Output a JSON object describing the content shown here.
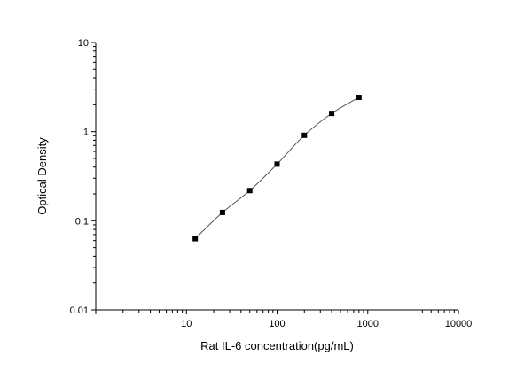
{
  "chart_data": {
    "type": "scatter",
    "title": "",
    "xlabel": "Rat IL-6 concentration(pg/mL)",
    "ylabel": "Optical Density",
    "x_scale": "log",
    "y_scale": "log",
    "xlim": [
      1,
      10000
    ],
    "ylim": [
      0.01,
      10
    ],
    "x_ticks": [
      10,
      100,
      1000,
      10000
    ],
    "x_tick_labels": [
      "10",
      "100",
      "1000",
      "10000"
    ],
    "y_ticks": [
      0.01,
      0.1,
      1,
      10
    ],
    "y_tick_labels": [
      "0.01",
      "0.1",
      "1",
      "10"
    ],
    "grid": false,
    "series": [
      {
        "x": [
          12.5,
          25,
          50,
          100,
          200,
          400,
          800
        ],
        "y": [
          0.063,
          0.124,
          0.218,
          0.432,
          0.91,
          1.6,
          2.42
        ],
        "marker": "square",
        "fit_curve": true
      }
    ],
    "colors": {
      "marker": "#000000",
      "curve": "#555555",
      "axis": "#000000"
    }
  }
}
